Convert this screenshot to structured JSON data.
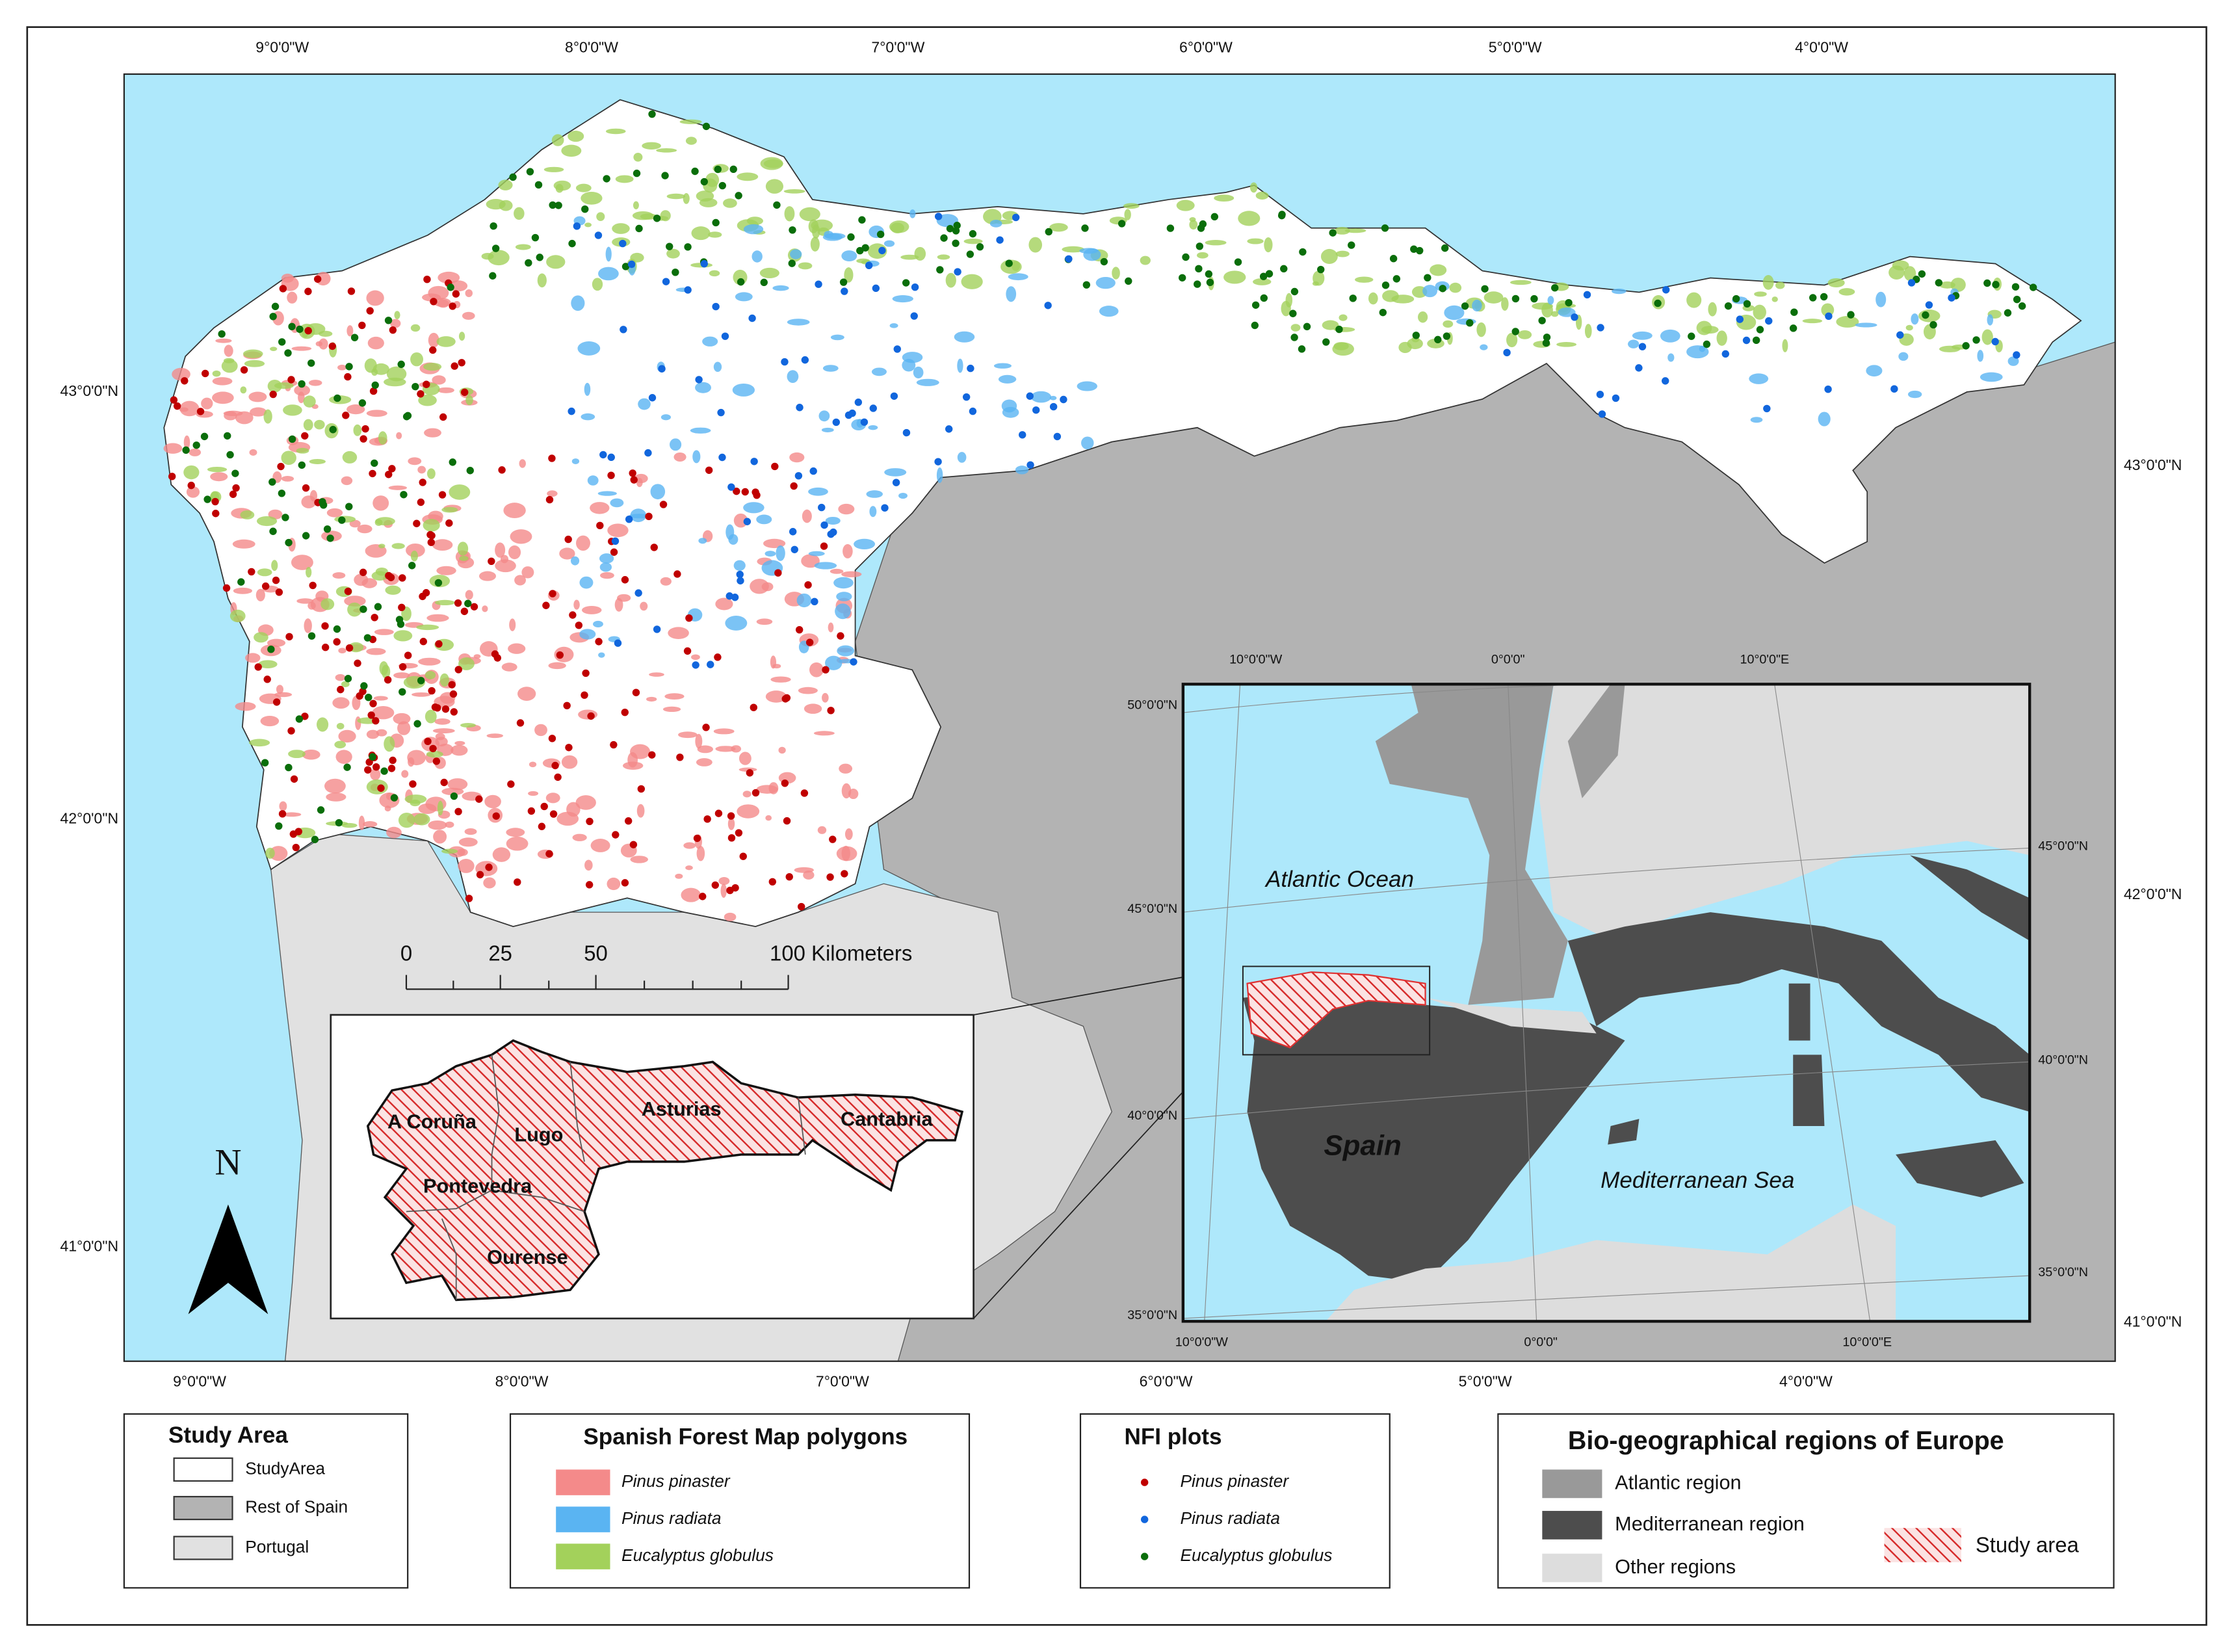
{
  "map": {
    "top_labels": [
      "9°0'0\"W",
      "8°0'0\"W",
      "7°0'0\"W",
      "6°0'0\"W",
      "5°0'0\"W",
      "4°0'0\"W"
    ],
    "bottom_labels": [
      "9°0'0\"W",
      "8°0'0\"W",
      "7°0'0\"W",
      "6°0'0\"W",
      "5°0'0\"W",
      "4°0'0\"W"
    ],
    "left_labels": [
      "43°0'0\"N",
      "42°0'0\"N",
      "41°0'0\"N"
    ],
    "right_labels": [
      "43°0'0\"N",
      "42°0'0\"N",
      "41°0'0\"N"
    ],
    "scale_bar": [
      "0",
      "25",
      "50",
      "100 Kilometers"
    ],
    "north": "N",
    "provinces": [
      "A Coruña",
      "Lugo",
      "Asturias",
      "Cantabria",
      "Pontevedra",
      "Ourense"
    ]
  },
  "inset": {
    "top_labels": [
      "10°0'0\"W",
      "0°0'0\"",
      "10°0'0\"E"
    ],
    "bottom_labels": [
      "10°0'0\"W",
      "0°0'0\"",
      "10°0'0\"E"
    ],
    "left_labels": [
      "50°0'0\"N",
      "45°0'0\"N",
      "40°0'0\"N",
      "35°0'0\"N"
    ],
    "right_labels": [
      "45°0'0\"N",
      "40°0'0\"N",
      "35°0'0\"N"
    ],
    "places": [
      "Atlantic Ocean",
      "Spain",
      "Mediterranean Sea"
    ]
  },
  "legends": [
    {
      "title": "Study Area",
      "items": [
        "StudyArea",
        "Rest of Spain",
        "Portugal"
      ]
    },
    {
      "title": "Spanish Forest Map polygons",
      "items": [
        "Pinus pinaster",
        "Pinus radiata",
        "Eucalyptus globulus"
      ]
    },
    {
      "title": "NFI plots",
      "items": [
        "Pinus pinaster",
        "Pinus radiata",
        "Eucalyptus globulus"
      ]
    },
    {
      "title": "Bio-geographical regions of Europe",
      "items": [
        "Atlantic region",
        "Mediterranean region",
        "Other regions",
        "Study area"
      ]
    }
  ]
}
